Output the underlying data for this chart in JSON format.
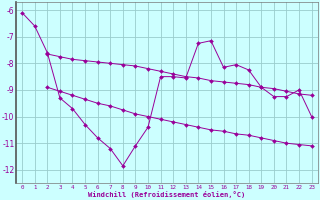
{
  "x": [
    0,
    1,
    2,
    3,
    4,
    5,
    6,
    7,
    8,
    9,
    10,
    11,
    12,
    13,
    14,
    15,
    16,
    17,
    18,
    19,
    20,
    21,
    22,
    23
  ],
  "line1": [
    -6.1,
    -6.6,
    -7.6,
    -9.3,
    -9.7,
    -10.3,
    -10.8,
    -11.2,
    -11.85,
    -11.1,
    -10.4,
    -8.5,
    -8.5,
    -8.55,
    -7.25,
    -7.15,
    -8.15,
    -8.05,
    -8.25,
    -8.9,
    -9.25,
    -9.25,
    -9.0,
    -10.0
  ],
  "line2_x": [
    2,
    3,
    4,
    5,
    6,
    7,
    8,
    9,
    10,
    11,
    12,
    13,
    14,
    15,
    16,
    17,
    18,
    19,
    20,
    21,
    22,
    23
  ],
  "line2_y": [
    -7.65,
    -7.75,
    -7.85,
    -7.9,
    -7.95,
    -8.0,
    -8.05,
    -8.1,
    -8.2,
    -8.3,
    -8.4,
    -8.5,
    -8.55,
    -8.65,
    -8.7,
    -8.75,
    -8.8,
    -8.9,
    -8.95,
    -9.05,
    -9.15,
    -9.2
  ],
  "line3_x": [
    2,
    3,
    4,
    5,
    6,
    7,
    8,
    9,
    10,
    11,
    12,
    13,
    14,
    15,
    16,
    17,
    18,
    19,
    20,
    21,
    22,
    23
  ],
  "line3_y": [
    -8.9,
    -9.05,
    -9.2,
    -9.35,
    -9.5,
    -9.6,
    -9.75,
    -9.9,
    -10.0,
    -10.1,
    -10.2,
    -10.3,
    -10.4,
    -10.5,
    -10.55,
    -10.65,
    -10.7,
    -10.8,
    -10.9,
    -11.0,
    -11.05,
    -11.1
  ],
  "ylim": [
    -12.5,
    -5.7
  ],
  "yticks": [
    -12,
    -11,
    -10,
    -9,
    -8,
    -7,
    -6
  ],
  "xticks": [
    0,
    1,
    2,
    3,
    4,
    5,
    6,
    7,
    8,
    9,
    10,
    11,
    12,
    13,
    14,
    15,
    16,
    17,
    18,
    19,
    20,
    21,
    22,
    23
  ],
  "line_color": "#990099",
  "bg_color": "#ccffff",
  "grid_color": "#99cccc",
  "xlabel": "Windchill (Refroidissement éolien,°C)",
  "text_color": "#990099",
  "marker": "D",
  "marker_size": 2.0,
  "linewidth": 0.7
}
